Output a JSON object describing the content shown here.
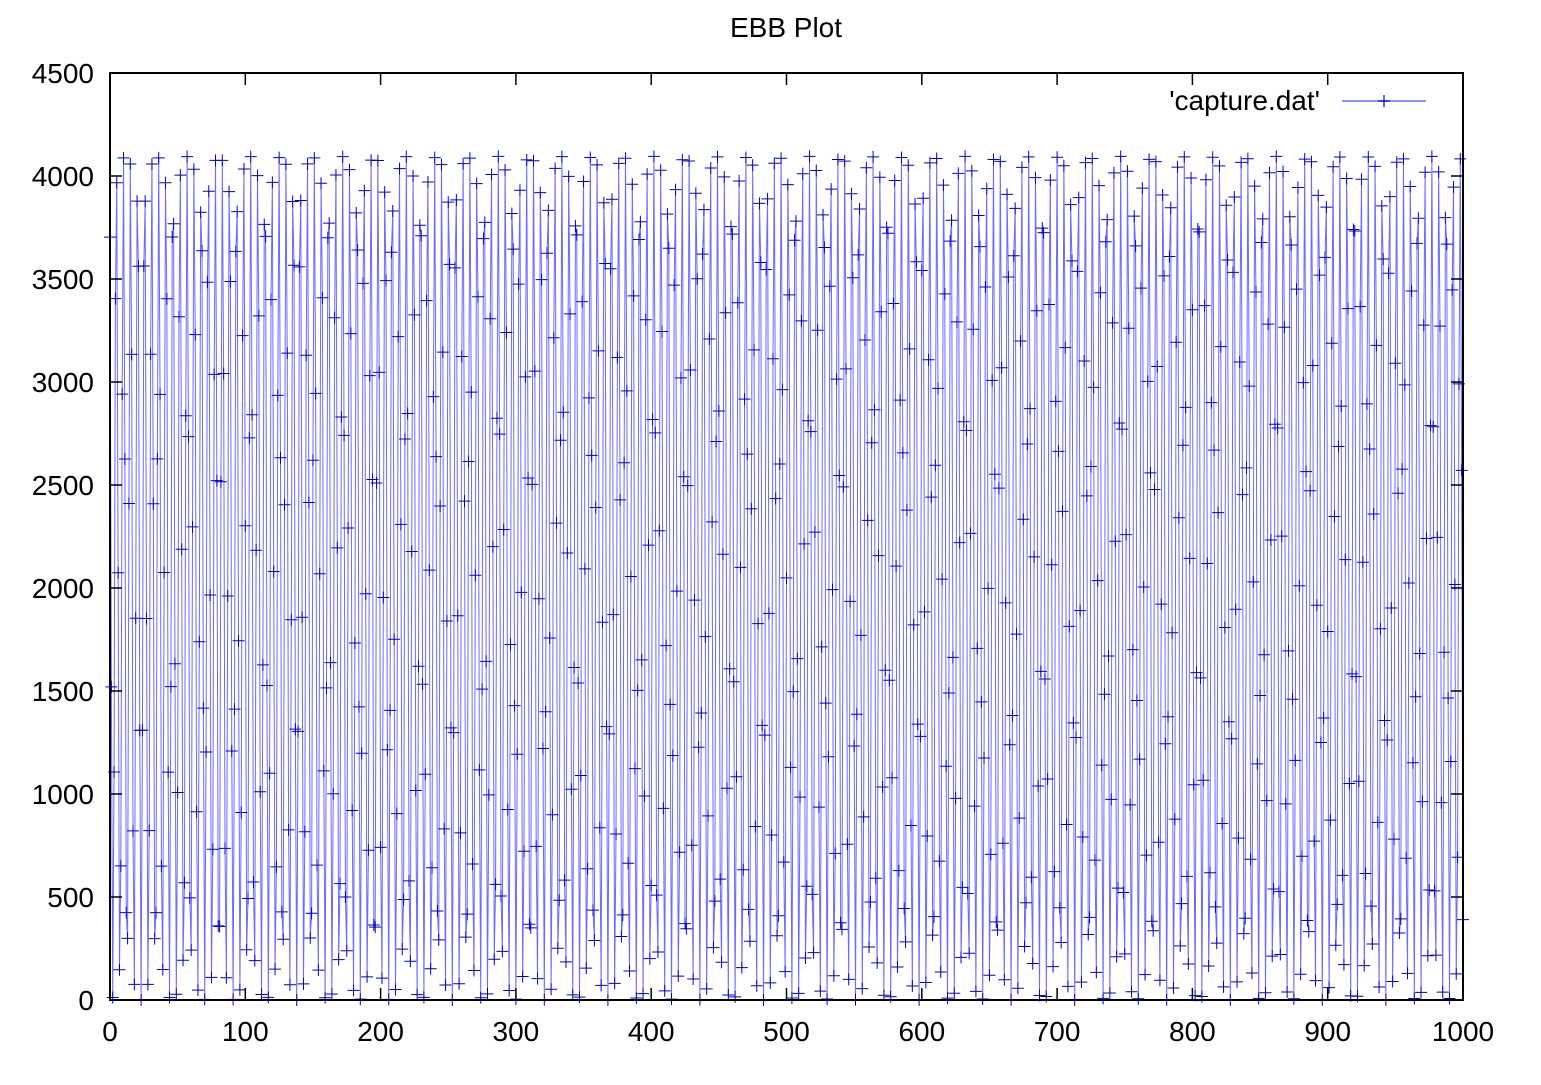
{
  "chart_data": {
    "type": "line",
    "title": "EBB Plot",
    "xlabel": "",
    "ylabel": "",
    "xlim": [
      0,
      1000
    ],
    "ylim": [
      0,
      4500
    ],
    "x_ticks": [
      0,
      100,
      200,
      300,
      400,
      500,
      600,
      700,
      800,
      900,
      1000
    ],
    "y_ticks": [
      0,
      500,
      1000,
      1500,
      2000,
      2500,
      3000,
      3500,
      4000,
      4500
    ],
    "grid": false,
    "legend": "top-right",
    "marker": "plus",
    "series": [
      {
        "name": "'capture.dat'",
        "color": "#0000cc",
        "line_color": "#6b6bff",
        "x_start": 0,
        "x_end": 1000,
        "x_step": 1,
        "y_form": "2047.5 + 2047.5*sin(2*pi*0.1913*x + 2.2)",
        "y_min": 0,
        "y_max": 4095
      }
    ]
  }
}
